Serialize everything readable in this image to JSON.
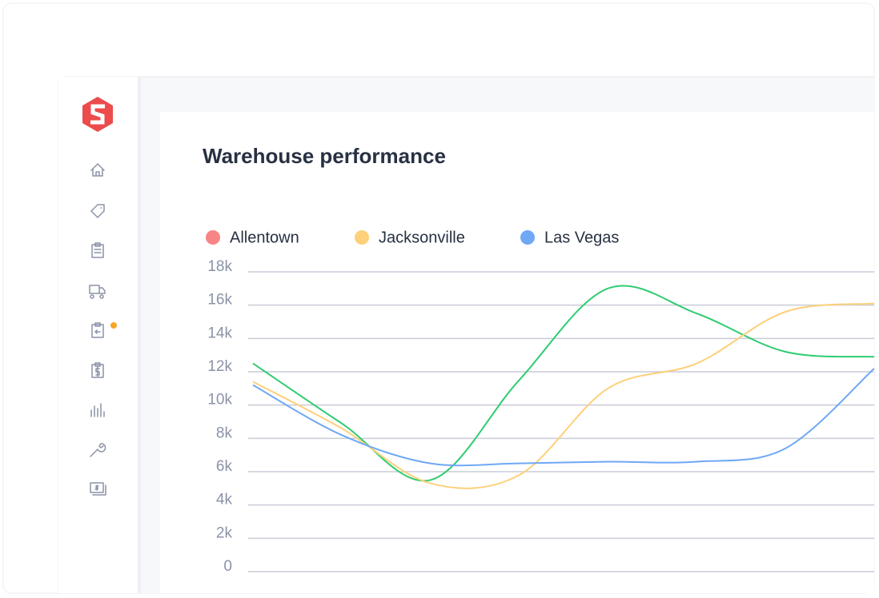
{
  "chart_data": {
    "type": "line",
    "title": "Warehouse performance",
    "categories": [
      null,
      null,
      null,
      null,
      null,
      null,
      null,
      null
    ],
    "series": [
      {
        "name": "Allentown",
        "color": "#2ecc71",
        "marker_color": "#f88585",
        "values": [
          12500,
          8900,
          5500,
          11500,
          17000,
          15500,
          13200,
          12900
        ]
      },
      {
        "name": "Jacksonville",
        "color": "#fdd07a",
        "marker_color": "#fdd07a",
        "values": [
          11400,
          8600,
          5300,
          5800,
          11000,
          12500,
          15600,
          16100
        ]
      },
      {
        "name": "Las Vegas",
        "color": "#6fa8f5",
        "marker_color": "#6fa8f5",
        "values": [
          11200,
          8200,
          6500,
          6500,
          6600,
          6600,
          7400,
          12200
        ]
      }
    ],
    "ylim": [
      0,
      18000
    ],
    "yticks": [
      {
        "value": 0,
        "label": "0"
      },
      {
        "value": 2000,
        "label": "2k"
      },
      {
        "value": 4000,
        "label": "4k"
      },
      {
        "value": 6000,
        "label": "6k"
      },
      {
        "value": 8000,
        "label": "8k"
      },
      {
        "value": 10000,
        "label": "10k"
      },
      {
        "value": 12000,
        "label": "12k"
      },
      {
        "value": 14000,
        "label": "14k"
      },
      {
        "value": 16000,
        "label": "16k"
      },
      {
        "value": 18000,
        "label": "18k"
      }
    ],
    "grid": true
  }
}
